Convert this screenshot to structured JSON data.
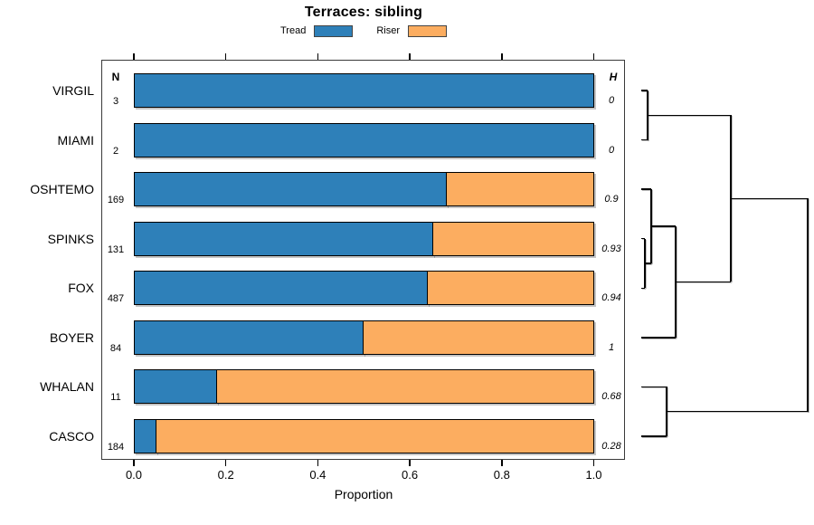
{
  "title": "Terraces: sibling",
  "legend": [
    {
      "label": "Tread",
      "color": "#2E80B9"
    },
    {
      "label": "Riser",
      "color": "#FCAD60"
    }
  ],
  "columns": {
    "n_header": "N",
    "h_header": "H"
  },
  "axis": {
    "xlabel": "Proportion",
    "tick_labels": [
      "0.0",
      "0.2",
      "0.4",
      "0.6",
      "0.8",
      "1.0"
    ],
    "tick_values": [
      0,
      0.2,
      0.4,
      0.6,
      0.8,
      1.0
    ]
  },
  "chart_data": {
    "type": "bar",
    "stacked": true,
    "orientation": "horizontal",
    "title": "Terraces: sibling",
    "xlabel": "Proportion",
    "xlim": [
      0,
      1
    ],
    "categories": [
      "VIRGIL",
      "MIAMI",
      "OSHTEMO",
      "SPINKS",
      "FOX",
      "BOYER",
      "WHALAN",
      "CASCO"
    ],
    "n_values": [
      "3",
      "2",
      "169",
      "131",
      "487",
      "84",
      "11",
      "184"
    ],
    "h_values": [
      "0",
      "0",
      "0.9",
      "0.93",
      "0.94",
      "1",
      "0.68",
      "0.28"
    ],
    "series": [
      {
        "name": "Tread",
        "color": "#2E80B9",
        "values": [
          1.0,
          1.0,
          0.68,
          0.65,
          0.64,
          0.5,
          0.18,
          0.05
        ]
      },
      {
        "name": "Riser",
        "color": "#FCAD60",
        "values": [
          0.0,
          0.0,
          0.32,
          0.35,
          0.36,
          0.5,
          0.82,
          0.95
        ]
      }
    ],
    "legend_position": "top",
    "grid": false,
    "dendrogram": {
      "side": "right",
      "leaves": [
        "VIRGIL",
        "MIAMI",
        "OSHTEMO",
        "SPINKS",
        "FOX",
        "BOYER",
        "WHALAN",
        "CASCO"
      ],
      "merges": [
        {
          "id": "M1",
          "a": "L0",
          "b": "L1",
          "height": 0.038
        },
        {
          "id": "M2",
          "a": "L3",
          "b": "L4",
          "height": 0.022
        },
        {
          "id": "M3",
          "a": "L2",
          "b": "M2",
          "height": 0.06
        },
        {
          "id": "M4",
          "a": "M3",
          "b": "L5",
          "height": 0.207
        },
        {
          "id": "M5",
          "a": "M1",
          "b": "M4",
          "height": 0.538
        },
        {
          "id": "M6",
          "a": "L6",
          "b": "L7",
          "height": 0.152
        },
        {
          "id": "M7",
          "a": "M5",
          "b": "M6",
          "height": 1.0
        }
      ]
    }
  }
}
